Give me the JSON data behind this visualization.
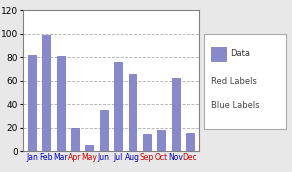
{
  "categories": [
    "Jan",
    "Feb",
    "Mar",
    "Apr",
    "May",
    "Jun",
    "Jul",
    "Aug",
    "Sep",
    "Oct",
    "Nov",
    "Dec"
  ],
  "values": [
    82,
    99,
    81,
    20,
    5,
    35,
    76,
    66,
    15,
    18,
    62,
    16
  ],
  "bar_color": "#8888cc",
  "bar_edge_color": "#7070bb",
  "label_colors": [
    "#0000cc",
    "#0000cc",
    "#0000cc",
    "#cc0000",
    "#cc0000",
    "#0000cc",
    "#0000cc",
    "#0000cc",
    "#cc0000",
    "#cc0000",
    "#0000cc",
    "#cc0000"
  ],
  "ylim": [
    0,
    120
  ],
  "yticks": [
    0,
    20,
    40,
    60,
    80,
    100,
    120
  ],
  "legend_items": [
    "Data",
    "Red Labels",
    "Blue Labels"
  ],
  "legend_text_colors": [
    "#000000",
    "#666666",
    "#666666"
  ],
  "background_color": "#ffffff",
  "plot_bg_color": "#ffffff",
  "outer_bg_color": "#e8e8e8",
  "grid_color": "#b0b0b0",
  "spine_color": "#808080"
}
